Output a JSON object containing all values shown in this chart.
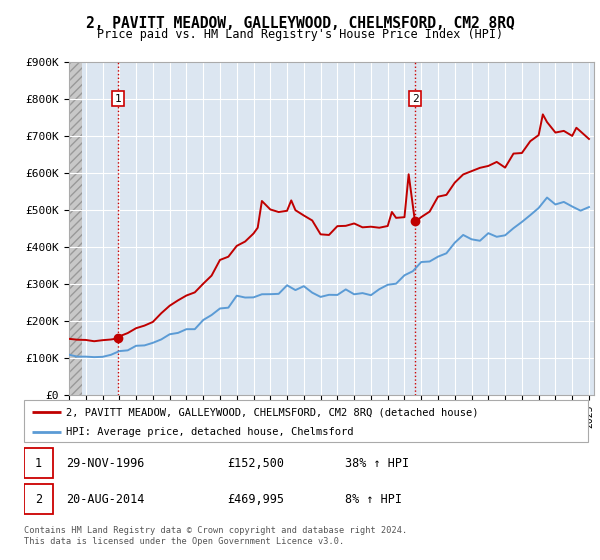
{
  "title": "2, PAVITT MEADOW, GALLEYWOOD, CHELMSFORD, CM2 8RQ",
  "subtitle": "Price paid vs. HM Land Registry's House Price Index (HPI)",
  "legend_line1": "2, PAVITT MEADOW, GALLEYWOOD, CHELMSFORD, CM2 8RQ (detached house)",
  "legend_line2": "HPI: Average price, detached house, Chelmsford",
  "annotation1_date": "29-NOV-1996",
  "annotation1_price": "£152,500",
  "annotation1_hpi": "38% ↑ HPI",
  "annotation2_date": "20-AUG-2014",
  "annotation2_price": "£469,995",
  "annotation2_hpi": "8% ↑ HPI",
  "footnote": "Contains HM Land Registry data © Crown copyright and database right 2024.\nThis data is licensed under the Open Government Licence v3.0.",
  "hpi_color": "#5b9bd5",
  "price_color": "#c00000",
  "vline_color": "#cc0000",
  "plot_bg_color": "#dce6f1",
  "grid_color": "#ffffff",
  "hatch_color": "#bfbfbf",
  "ylim": [
    0,
    900000
  ],
  "yticks": [
    0,
    100000,
    200000,
    300000,
    400000,
    500000,
    600000,
    700000,
    800000,
    900000
  ],
  "ytick_labels": [
    "£0",
    "£100K",
    "£200K",
    "£300K",
    "£400K",
    "£500K",
    "£600K",
    "£700K",
    "£800K",
    "£900K"
  ],
  "sale1_year": 1996.92,
  "sale1_price": 152500,
  "sale2_year": 2014.63,
  "sale2_price": 469995,
  "hpi_years": [
    1994,
    1994.5,
    1995,
    1995.5,
    1996,
    1996.5,
    1997,
    1997.5,
    1998,
    1998.5,
    1999,
    1999.5,
    2000,
    2000.5,
    2001,
    2001.5,
    2002,
    2002.5,
    2003,
    2003.5,
    2004,
    2004.5,
    2005,
    2005.5,
    2006,
    2006.5,
    2007,
    2007.5,
    2008,
    2008.5,
    2009,
    2009.5,
    2010,
    2010.5,
    2011,
    2011.5,
    2012,
    2012.5,
    2013,
    2013.5,
    2014,
    2014.5,
    2015,
    2015.5,
    2016,
    2016.5,
    2017,
    2017.5,
    2018,
    2018.5,
    2019,
    2019.5,
    2020,
    2020.5,
    2021,
    2021.5,
    2022,
    2022.5,
    2023,
    2023.5,
    2024,
    2024.5,
    2025
  ],
  "hpi_vals": [
    105000,
    104000,
    103000,
    101000,
    104000,
    108000,
    118000,
    124000,
    130000,
    132000,
    142000,
    150000,
    162000,
    168000,
    178000,
    182000,
    200000,
    215000,
    232000,
    242000,
    260000,
    262000,
    265000,
    262000,
    272000,
    280000,
    298000,
    295000,
    288000,
    278000,
    268000,
    265000,
    278000,
    282000,
    282000,
    278000,
    275000,
    278000,
    288000,
    302000,
    318000,
    335000,
    355000,
    365000,
    385000,
    395000,
    408000,
    415000,
    418000,
    420000,
    422000,
    425000,
    430000,
    448000,
    468000,
    488000,
    518000,
    528000,
    515000,
    510000,
    512000,
    515000,
    508000
  ],
  "price_years": [
    1994,
    1994.5,
    1995,
    1995.5,
    1996,
    1996.5,
    1996.92,
    1997,
    1997.5,
    1998,
    1998.5,
    1999,
    1999.5,
    2000,
    2000.5,
    2001,
    2001.5,
    2002,
    2002.5,
    2003,
    2003.5,
    2004,
    2004.5,
    2005,
    2005.25,
    2005.5,
    2006,
    2006.5,
    2007,
    2007.25,
    2007.5,
    2008,
    2008.5,
    2009,
    2009.5,
    2010,
    2010.5,
    2011,
    2011.5,
    2012,
    2012.5,
    2013,
    2013.25,
    2013.5,
    2014,
    2014.25,
    2014.63,
    2015,
    2015.5,
    2016,
    2016.5,
    2017,
    2017.5,
    2018,
    2018.5,
    2019,
    2019.5,
    2020,
    2020.5,
    2021,
    2021.5,
    2022,
    2022.25,
    2022.5,
    2023,
    2023.5,
    2024,
    2024.25,
    2024.5,
    2025
  ],
  "price_vals": [
    148000,
    148000,
    148000,
    148000,
    148000,
    150000,
    152500,
    158000,
    168000,
    180000,
    188000,
    200000,
    218000,
    238000,
    250000,
    268000,
    278000,
    302000,
    328000,
    360000,
    378000,
    408000,
    415000,
    428000,
    450000,
    530000,
    505000,
    490000,
    498000,
    530000,
    500000,
    480000,
    460000,
    440000,
    435000,
    460000,
    470000,
    468000,
    458000,
    448000,
    452000,
    465000,
    490000,
    480000,
    490000,
    600000,
    469995,
    480000,
    500000,
    535000,
    555000,
    575000,
    588000,
    598000,
    605000,
    610000,
    618000,
    622000,
    645000,
    668000,
    690000,
    718000,
    748000,
    725000,
    710000,
    698000,
    705000,
    720000,
    710000,
    700000
  ]
}
